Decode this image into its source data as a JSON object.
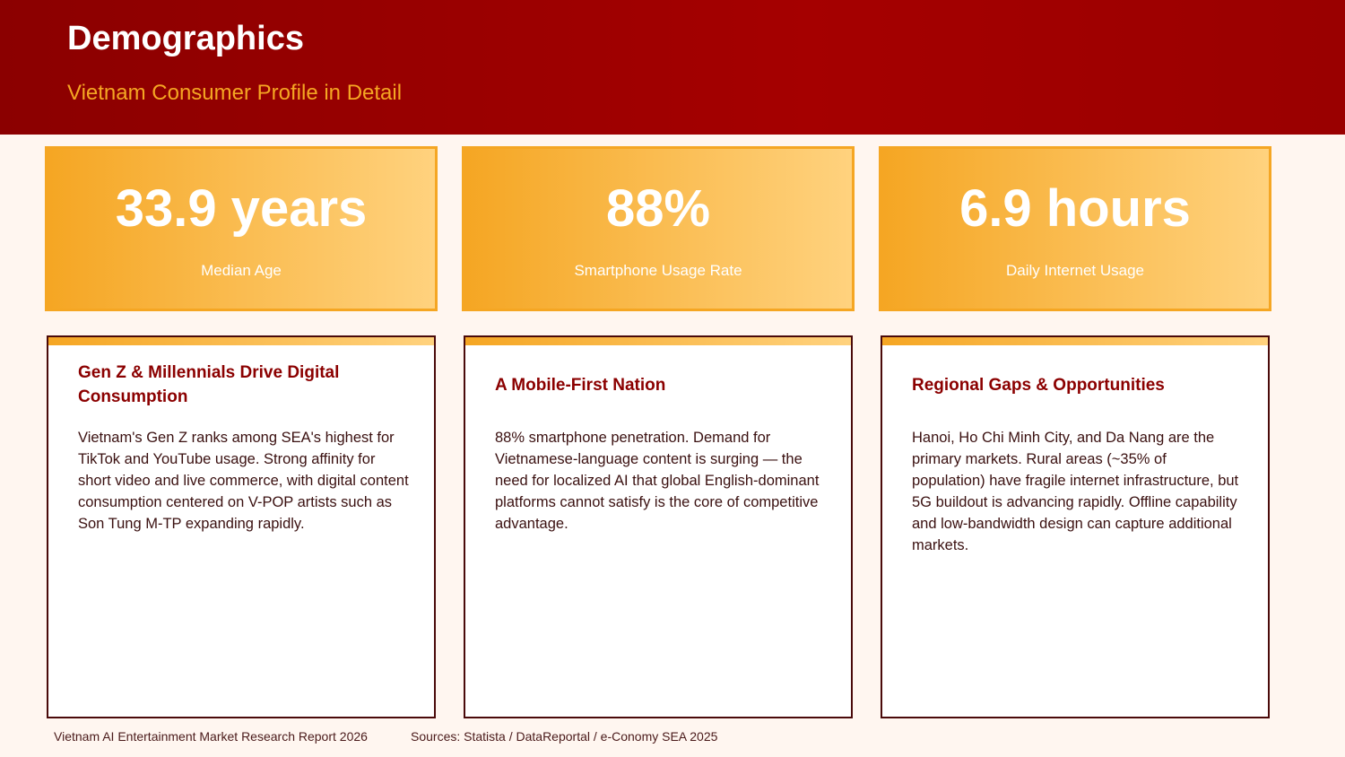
{
  "header": {
    "title": "Demographics",
    "subtitle": "Vietnam Consumer Profile in Detail"
  },
  "stats": [
    {
      "value": "33.9 years",
      "label": "Median Age"
    },
    {
      "value": "88%",
      "label": "Smartphone Usage Rate"
    },
    {
      "value": "6.9 hours",
      "label": "Daily Internet Usage"
    }
  ],
  "cards": [
    {
      "title": "Gen Z & Millennials Drive Digital Consumption",
      "body": "Vietnam's Gen Z ranks among SEA's highest for TikTok and YouTube usage. Strong affinity for short video and live commerce, with digital content consumption centered on V-POP artists such as Son Tung M-TP expanding rapidly."
    },
    {
      "title": "A Mobile-First Nation",
      "body": "88% smartphone penetration. Demand for Vietnamese-language content is surging — the need for localized AI that global English-dominant platforms cannot satisfy is the core of competitive advantage."
    },
    {
      "title": "Regional Gaps & Opportunities",
      "body": "Hanoi, Ho Chi Minh City, and Da Nang are the primary markets. Rural areas (~35% of population) have fragile internet infrastructure, but 5G buildout is advancing rapidly. Offline capability and low-bandwidth design can capture additional markets."
    }
  ],
  "footer": {
    "report": "Vietnam AI Entertainment Market Research Report 2026",
    "sources": "Sources: Statista / DataReportal / e-Conomy SEA 2025"
  }
}
